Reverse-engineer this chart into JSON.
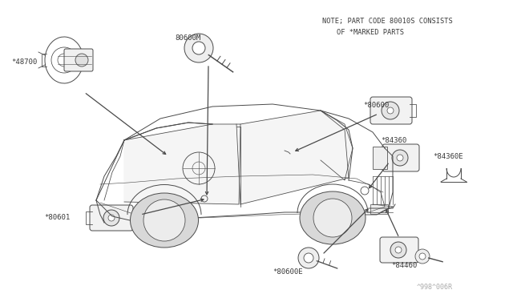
{
  "bg_color": "#ffffff",
  "lc": "#4a4a4a",
  "tc": "#3a3a3a",
  "note1": "NOTE; PART CODE 80010S CONSISTS",
  "note2": "OF *MARKED PARTS",
  "watermark": "^998^006R",
  "font_size": 6.5,
  "note_font_size": 6.2
}
